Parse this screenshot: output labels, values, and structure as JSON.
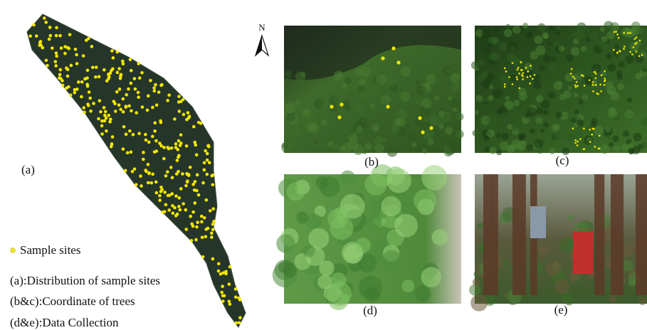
{
  "panel_labels": {
    "a": "(a)",
    "b": "(b)",
    "c": "(c)",
    "d": "(d)",
    "e": "(e)"
  },
  "north": "N",
  "legend": {
    "marker": "Sample sites",
    "lines": [
      "(a):Distribution of sample sites",
      "(b&c):Coordinate of trees",
      "(d&e):Data Collection"
    ]
  }
}
